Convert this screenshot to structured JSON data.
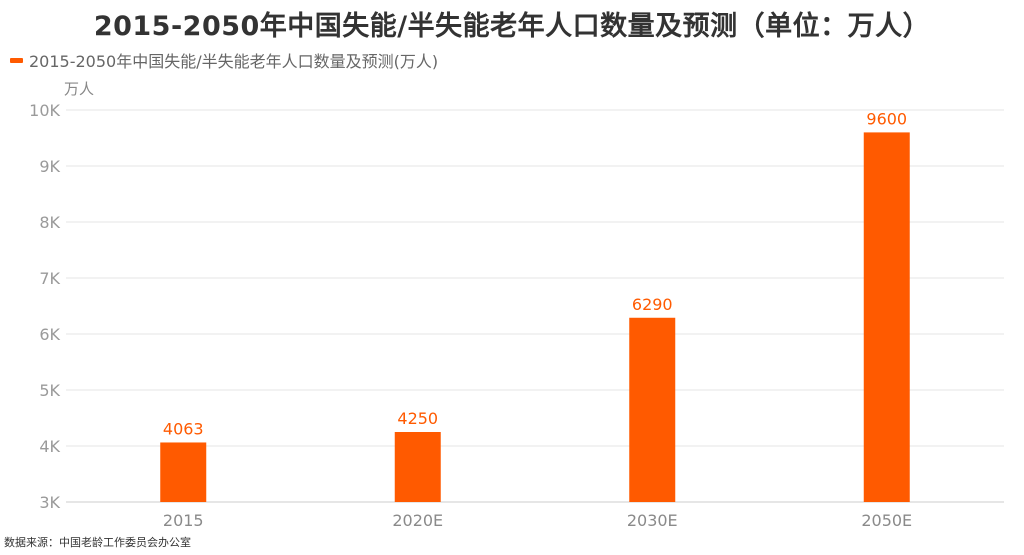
{
  "title": "2015-2050年中国失能/半失能老年人口数量及预测（单位：万人）",
  "source": "数据来源：中国老龄工作委员会办公室",
  "colors": {
    "bar": "#ff5a00",
    "grid": "#e6e6e6",
    "axis": "#cccccc"
  },
  "chart_data": {
    "type": "bar",
    "title": "2015-2050年中国失能/半失能老年人口数量及预测（单位：万人）",
    "ylabel": "万人",
    "categories": [
      "2015",
      "2020E",
      "2030E",
      "2050E"
    ],
    "series": [
      {
        "name": "2015-2050年中国失能/半失能老年人口数量及预测(万人)",
        "values": [
          4063,
          4250,
          6290,
          9600
        ]
      }
    ],
    "data_labels": [
      "4063",
      "4250",
      "6290",
      "9600"
    ],
    "ylim": [
      3000,
      10000
    ],
    "yticks": [
      3000,
      4000,
      5000,
      6000,
      7000,
      8000,
      9000,
      10000
    ],
    "ytick_labels": [
      "3K",
      "4K",
      "5K",
      "6K",
      "7K",
      "8K",
      "9K",
      "10K"
    ],
    "grid": true,
    "legend": "top-left"
  }
}
